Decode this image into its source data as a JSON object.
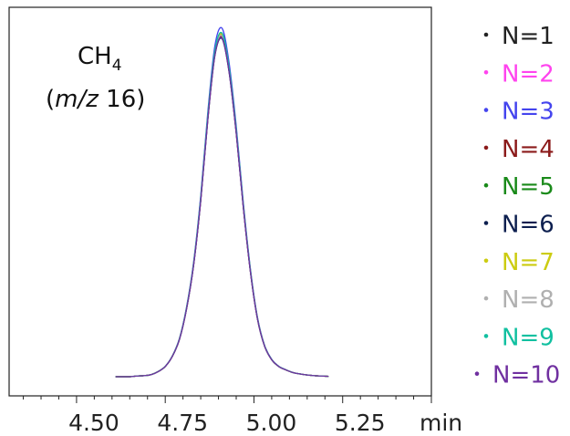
{
  "chart_data": {
    "type": "line",
    "title": "",
    "annotation": {
      "species": "CH",
      "subscript": "4",
      "open_paren": "(",
      "mz_label": "m/z",
      "mz_value": " 16)"
    },
    "xlabel": "min",
    "ylabel": "",
    "xlim": [
      4.31,
      5.5
    ],
    "ylim": [
      -5.5,
      106
    ],
    "x_ticks_major": [
      4.5,
      4.75,
      5.0,
      5.25,
      5.5
    ],
    "x_tick_labels": [
      "4.50",
      "4.75",
      "5.00",
      "5.25"
    ],
    "x_minor_step": 0.05,
    "grid": false,
    "legend_placement": "right",
    "x": [
      4.61,
      4.63,
      4.65,
      4.67,
      4.69,
      4.71,
      4.73,
      4.75,
      4.77,
      4.79,
      4.81,
      4.83,
      4.85,
      4.87,
      4.89,
      4.91,
      4.93,
      4.95,
      4.97,
      4.99,
      5.01,
      5.03,
      5.05,
      5.07,
      5.09,
      5.11,
      5.13,
      5.15,
      5.17,
      5.19,
      5.21
    ],
    "profile": [
      0,
      0,
      0,
      0.2,
      0.3,
      0.6,
      1.5,
      3,
      6,
      11,
      20,
      33,
      52,
      76,
      95,
      100,
      90,
      72,
      50,
      31,
      17,
      9,
      5,
      3,
      2,
      1.2,
      0.8,
      0.5,
      0.3,
      0.2,
      0.1
    ],
    "series": [
      {
        "name": "N=1",
        "color": "#222222",
        "peak": 98
      },
      {
        "name": "N=2",
        "color": "#ff44ee",
        "peak": 98.5
      },
      {
        "name": "N=3",
        "color": "#4444ee",
        "peak": 100
      },
      {
        "name": "N=4",
        "color": "#8b1a1a",
        "peak": 97.5
      },
      {
        "name": "N=5",
        "color": "#1a8a1a",
        "peak": 98
      },
      {
        "name": "N=6",
        "color": "#0d1f4f",
        "peak": 97
      },
      {
        "name": "N=7",
        "color": "#cccc11",
        "peak": 98.2
      },
      {
        "name": "N=8",
        "color": "#b0b0b0",
        "peak": 97.8
      },
      {
        "name": "N=9",
        "color": "#11c0a0",
        "peak": 98.6
      },
      {
        "name": "N=10",
        "color": "#7030a0",
        "peak": 97.2
      }
    ]
  }
}
